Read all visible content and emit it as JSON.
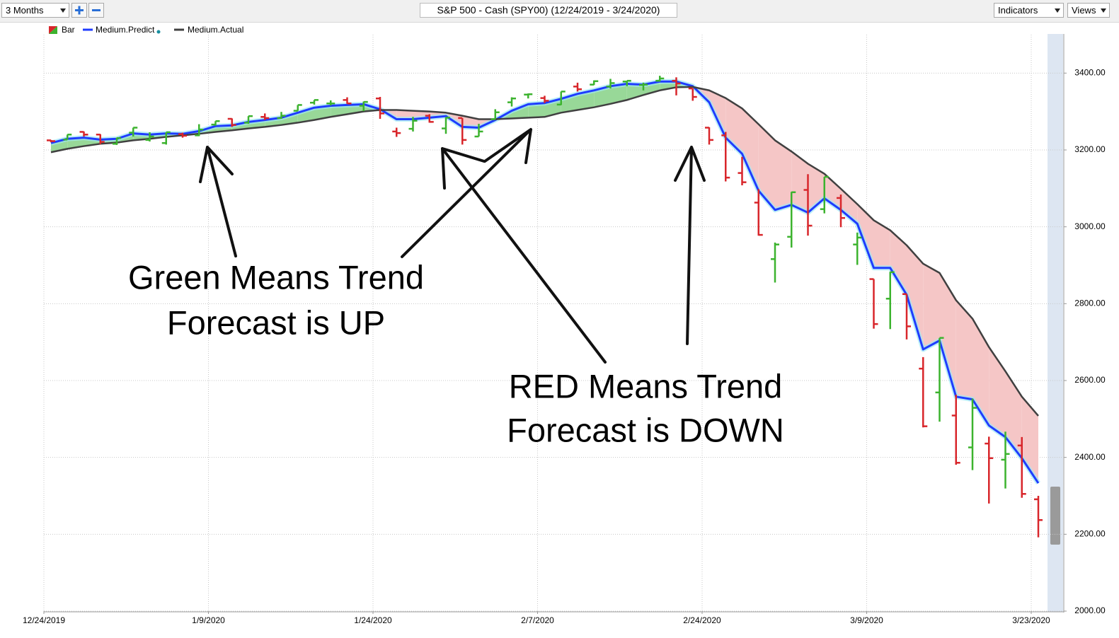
{
  "toolbar": {
    "period": "3 Months",
    "title": "S&P 500 - Cash (SPY00) (12/24/2019 - 3/24/2020)",
    "indicators": "Indicators",
    "views": "Views"
  },
  "chart_data": {
    "type": "ohlc",
    "categories": [
      "12/24/2019",
      null,
      null,
      null,
      null,
      null,
      null,
      null,
      null,
      null,
      "1/9/2020",
      null,
      null,
      null,
      null,
      null,
      null,
      null,
      null,
      null,
      "1/24/2020",
      null,
      null,
      null,
      null,
      null,
      null,
      null,
      null,
      null,
      "2/7/2020",
      null,
      null,
      null,
      null,
      null,
      null,
      null,
      null,
      null,
      "2/24/2020",
      null,
      null,
      null,
      null,
      null,
      null,
      null,
      null,
      null,
      "3/9/2020",
      null,
      null,
      null,
      null,
      null,
      null,
      null,
      null,
      null,
      "3/23/2020"
    ],
    "bars": {
      "name": "Bar",
      "up_color": "#3cb32e",
      "down_color": "#d8262b",
      "open": [
        3225,
        3227,
        3247,
        3240,
        3216,
        3245,
        3226,
        3218,
        3241,
        3238,
        3266,
        3281,
        3271,
        3286,
        3283,
        3302,
        3323,
        3321,
        3330,
        3315,
        3334,
        3248,
        3255,
        3289,
        3256,
        3283,
        3235,
        3280,
        3324,
        3344,
        3335,
        3318,
        3365,
        3370,
        3365,
        3378,
        3369,
        3380,
        3380,
        3360,
        3258,
        3238,
        3140,
        3063,
        2916,
        2974,
        3096,
        3046,
        3075,
        2954,
        2864,
        2813,
        2825,
        2631,
        2569,
        2509,
        2426,
        2436,
        2394,
        2431,
        2291
      ],
      "high": [
        3226,
        3240,
        3248,
        3241,
        3232,
        3258,
        3246,
        3246,
        3245,
        3267,
        3275,
        3282,
        3288,
        3295,
        3299,
        3317,
        3330,
        3329,
        3337,
        3326,
        3338,
        3258,
        3286,
        3293,
        3285,
        3283,
        3268,
        3306,
        3337,
        3347,
        3341,
        3352,
        3375,
        3381,
        3385,
        3380,
        3375,
        3393,
        3389,
        3360,
        3259,
        3247,
        3182,
        3098,
        2959,
        3091,
        3137,
        3130,
        3084,
        2985,
        2864,
        2883,
        2825,
        2661,
        2711,
        2563,
        2553,
        2454,
        2467,
        2453,
        2300
      ],
      "low": [
        3220,
        3227,
        3235,
        3215,
        3213,
        3235,
        3222,
        3214,
        3232,
        3236,
        3263,
        3260,
        3268,
        3278,
        3281,
        3302,
        3318,
        3316,
        3320,
        3301,
        3281,
        3234,
        3248,
        3271,
        3242,
        3214,
        3235,
        3280,
        3313,
        3334,
        3322,
        3317,
        3352,
        3369,
        3360,
        3366,
        3355,
        3378,
        3342,
        3328,
        3214,
        3118,
        3108,
        2977,
        2855,
        2946,
        2977,
        3035,
        2999,
        2901,
        2735,
        2734,
        2707,
        2478,
        2493,
        2381,
        2367,
        2280,
        2319,
        2295,
        2192
      ],
      "close": [
        3223,
        3240,
        3240,
        3221,
        3231,
        3258,
        3235,
        3246,
        3237,
        3253,
        3275,
        3265,
        3288,
        3283,
        3289,
        3317,
        3330,
        3321,
        3321,
        3325,
        3295,
        3244,
        3276,
        3273,
        3284,
        3226,
        3248,
        3298,
        3334,
        3345,
        3328,
        3352,
        3358,
        3379,
        3374,
        3380,
        3370,
        3386,
        3373,
        3338,
        3226,
        3128,
        3116,
        2979,
        2954,
        3090,
        3003,
        3130,
        3023,
        2972,
        2747,
        2882,
        2741,
        2481,
        2711,
        2386,
        2529,
        2398,
        2409,
        2305,
        2237
      ]
    },
    "series": [
      {
        "name": "Medium.Predict",
        "color": "#1f3cff",
        "values": [
          3218,
          3229,
          3232,
          3227,
          3229,
          3243,
          3240,
          3243,
          3242,
          3249,
          3262,
          3264,
          3273,
          3278,
          3284,
          3297,
          3310,
          3315,
          3317,
          3319,
          3306,
          3280,
          3280,
          3284,
          3288,
          3260,
          3258,
          3278,
          3302,
          3319,
          3322,
          3333,
          3346,
          3355,
          3366,
          3372,
          3370,
          3378,
          3378,
          3366,
          3324,
          3232,
          3190,
          3094,
          3044,
          3057,
          3037,
          3074,
          3044,
          3008,
          2893,
          2893,
          2823,
          2681,
          2704,
          2558,
          2551,
          2483,
          2453,
          2398,
          2333
        ]
      },
      {
        "name": "Medium.Actual",
        "color": "#404040",
        "values": [
          3194,
          3203,
          3210,
          3216,
          3219,
          3225,
          3229,
          3234,
          3238,
          3242,
          3247,
          3251,
          3256,
          3260,
          3265,
          3271,
          3278,
          3286,
          3293,
          3300,
          3304,
          3304,
          3302,
          3300,
          3297,
          3289,
          3280,
          3280,
          3282,
          3284,
          3286,
          3297,
          3304,
          3311,
          3320,
          3330,
          3343,
          3355,
          3363,
          3364,
          3355,
          3335,
          3308,
          3267,
          3225,
          3196,
          3164,
          3138,
          3099,
          3059,
          3017,
          2991,
          2952,
          2904,
          2880,
          2809,
          2761,
          2687,
          2624,
          2558,
          2508
        ]
      }
    ],
    "fill_up_color": "#98d898",
    "fill_down_color": "#f5c6c6",
    "ylim": [
      2000,
      3500
    ],
    "yticks": [
      {
        "value": 2000,
        "label": "2000.00"
      },
      {
        "value": 2200,
        "label": "2200.00"
      },
      {
        "value": 2400,
        "label": "2400.00"
      },
      {
        "value": 2600,
        "label": "2600.00"
      },
      {
        "value": 2800,
        "label": "2800.00"
      },
      {
        "value": 3000,
        "label": "3000.00"
      },
      {
        "value": 3200,
        "label": "3200.00"
      },
      {
        "value": 3400,
        "label": "3400.00"
      }
    ],
    "grid": true,
    "annotations": [
      [
        "Green Means Trend",
        "Forecast is UP"
      ],
      [
        "RED Means Trend",
        "Forecast is DOWN"
      ]
    ]
  }
}
